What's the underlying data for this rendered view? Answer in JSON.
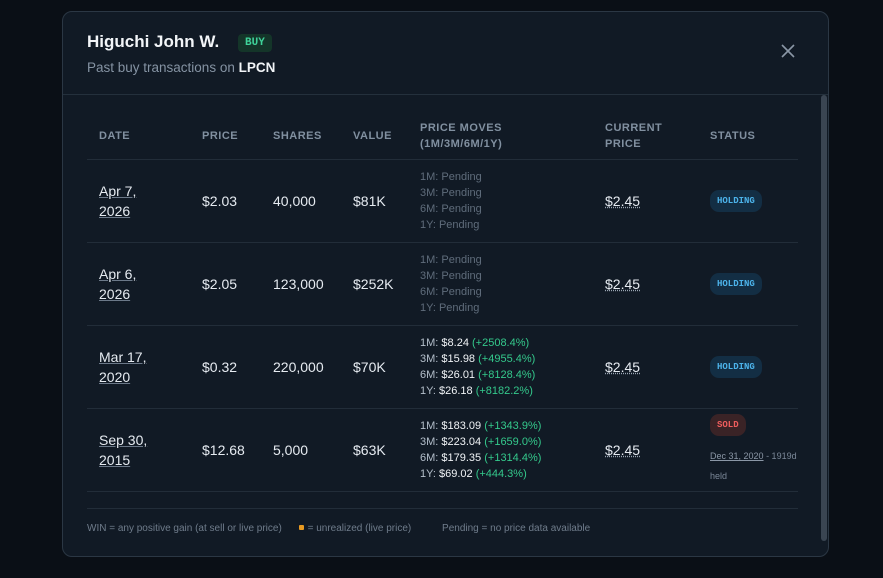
{
  "modal": {
    "title": "Higuchi John W.",
    "badge": "BUY",
    "subtitle": "Past buy transactions on",
    "ticker": "LPCN"
  },
  "table": {
    "headers": [
      [
        "DATE"
      ],
      [
        "PRICE"
      ],
      [
        "SHARES"
      ],
      [
        "VALUE"
      ],
      [
        "PRICE MOVES",
        "(1M/3M/6M/1Y)"
      ],
      [
        "CURRENT",
        "PRICE"
      ],
      [
        "STATUS"
      ]
    ],
    "rows": [
      {
        "date": "Apr 7, 2026",
        "price": "$2.03",
        "shares": "40,000",
        "value": "$81K",
        "moves": [
          {
            "period": "1M:",
            "price": "Pending"
          },
          {
            "period": "3M:",
            "price": "Pending"
          },
          {
            "period": "6M:",
            "price": "Pending"
          },
          {
            "period": "1Y:",
            "price": "Pending"
          }
        ],
        "current": "$2.45",
        "status": "HOLDING"
      },
      {
        "date": "Apr 6, 2026",
        "price": "$2.05",
        "shares": "123,000",
        "value": "$252K",
        "moves": [
          {
            "period": "1M:",
            "price": "Pending"
          },
          {
            "period": "3M:",
            "price": "Pending"
          },
          {
            "period": "6M:",
            "price": "Pending"
          },
          {
            "period": "1Y:",
            "price": "Pending"
          }
        ],
        "current": "$2.45",
        "status": "HOLDING"
      },
      {
        "date": "Mar 17, 2020",
        "price": "$0.32",
        "shares": "220,000",
        "value": "$70K",
        "moves": [
          {
            "period": "1M:",
            "price": "$8.24",
            "change": "(+2508.4%)"
          },
          {
            "period": "3M:",
            "price": "$15.98",
            "change": "(+4955.4%)"
          },
          {
            "period": "6M:",
            "price": "$26.01",
            "change": "(+8128.4%)"
          },
          {
            "period": "1Y:",
            "price": "$26.18",
            "change": "(+8182.2%)"
          }
        ],
        "current": "$2.45",
        "status": "HOLDING"
      },
      {
        "date": "Sep 30, 2015",
        "price": "$12.68",
        "shares": "5,000",
        "value": "$63K",
        "moves": [
          {
            "period": "1M:",
            "price": "$183.09",
            "change": "(+1343.9%)"
          },
          {
            "period": "3M:",
            "price": "$223.04",
            "change": "(+1659.0%)"
          },
          {
            "period": "6M:",
            "price": "$179.35",
            "change": "(+1314.4%)"
          },
          {
            "period": "1Y:",
            "price": "$69.02",
            "change": "(+444.3%)"
          }
        ],
        "current": "$2.45",
        "status": "SOLD",
        "sold_date": "Dec 31, 2020",
        "held": "- 1919d held"
      }
    ]
  },
  "footer": {
    "win": "WIN = any positive gain (at sell or live price)",
    "unrealized": "= unrealized (live price)",
    "pending": "Pending = no price data available"
  }
}
